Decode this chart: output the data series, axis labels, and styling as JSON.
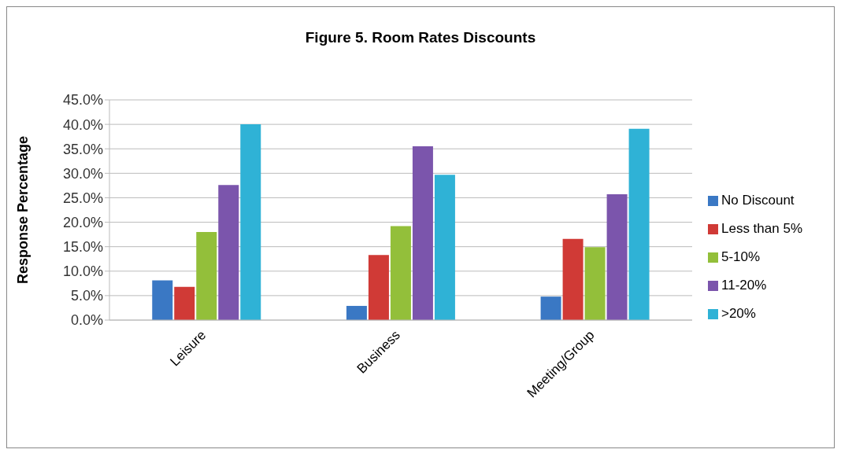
{
  "chart_data": {
    "type": "bar",
    "title": "Figure 5. Room Rates Discounts",
    "ylabel": "Response Percentage",
    "categories": [
      "Leisure",
      "Business",
      "Meeting/Group"
    ],
    "series": [
      {
        "name": "No Discount",
        "color": "#3a78c4",
        "values": [
          8.1,
          2.9,
          4.8
        ]
      },
      {
        "name": "Less than 5%",
        "color": "#d03a36",
        "values": [
          6.8,
          13.3,
          16.6
        ]
      },
      {
        "name": "5-10%",
        "color": "#93bf3a",
        "values": [
          18.0,
          19.2,
          14.9
        ]
      },
      {
        "name": "11-20%",
        "color": "#7b55ac",
        "values": [
          27.6,
          35.5,
          25.7
        ]
      },
      {
        "name": ">20%",
        "color": "#2fb2d6",
        "values": [
          40.0,
          29.7,
          39.1
        ]
      }
    ],
    "ylim": [
      0,
      45
    ],
    "yticks": [
      {
        "value": 0,
        "label": "0.0%"
      },
      {
        "value": 5,
        "label": "5.0%"
      },
      {
        "value": 10,
        "label": "10.0%"
      },
      {
        "value": 15,
        "label": "15.0%"
      },
      {
        "value": 20,
        "label": "20.0%"
      },
      {
        "value": 25,
        "label": "25.0%"
      },
      {
        "value": 30,
        "label": "30.0%"
      },
      {
        "value": 35,
        "label": "35.0%"
      },
      {
        "value": 40,
        "label": "40.0%"
      },
      {
        "value": 45,
        "label": "45.0%"
      }
    ],
    "grid": "y",
    "legend": "right"
  }
}
